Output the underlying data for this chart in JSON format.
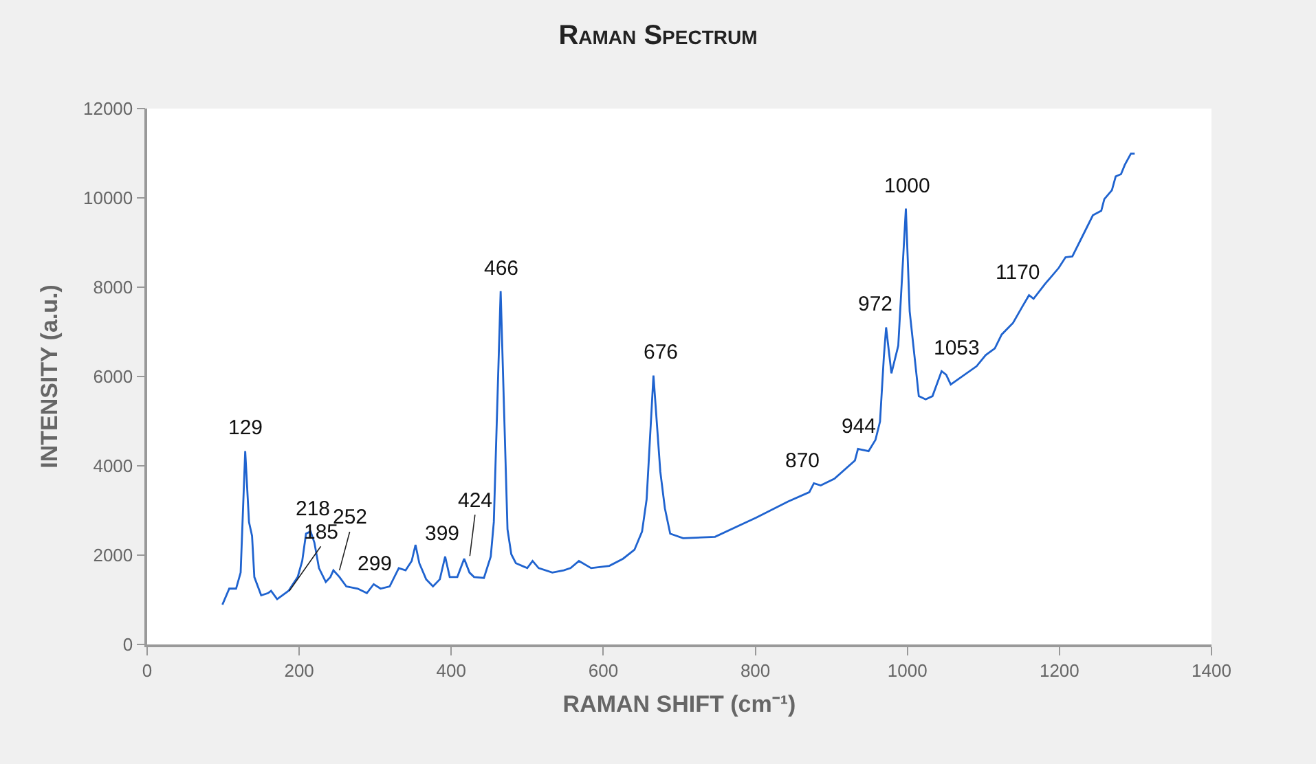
{
  "chart_data": {
    "type": "line",
    "title": "Raman Spectrum",
    "xlabel": "RAMAN SHIFT (cm⁻¹)",
    "ylabel": "INTENSITY (a.u.)",
    "x": [
      99,
      108,
      117,
      123,
      129,
      134,
      138,
      141,
      150,
      159,
      163,
      171,
      186,
      198,
      204,
      209,
      215,
      220,
      226,
      235,
      241,
      245,
      253,
      262,
      277,
      289,
      298,
      307,
      319,
      331,
      340,
      348,
      353,
      358,
      367,
      376,
      385,
      392,
      398,
      408,
      417,
      424,
      430,
      443,
      452,
      456,
      465,
      474,
      479,
      485,
      500,
      507,
      515,
      533,
      548,
      557,
      568,
      584,
      608,
      626,
      641,
      651,
      657,
      666,
      675,
      681,
      688,
      705,
      747,
      801,
      843,
      871,
      877,
      886,
      904,
      931,
      935,
      949,
      958,
      964,
      969,
      972,
      979,
      988,
      998,
      1003,
      1015,
      1024,
      1033,
      1045,
      1051,
      1057,
      1091,
      1103,
      1115,
      1124,
      1139,
      1151,
      1160,
      1166,
      1181,
      1199,
      1208,
      1217,
      1232,
      1244,
      1255,
      1259,
      1269,
      1274,
      1281,
      1286,
      1294,
      1299
    ],
    "series": [
      {
        "color": "#1f63cf",
        "values": [
          890,
          1250,
          1250,
          1610,
          4330,
          2740,
          2430,
          1510,
          1100,
          1150,
          1200,
          1015,
          1200,
          1510,
          1870,
          2480,
          2530,
          2280,
          1710,
          1400,
          1510,
          1660,
          1510,
          1300,
          1250,
          1150,
          1350,
          1250,
          1300,
          1710,
          1660,
          1870,
          2230,
          1820,
          1460,
          1300,
          1460,
          1970,
          1510,
          1510,
          1920,
          1610,
          1510,
          1490,
          1970,
          2740,
          7910,
          2580,
          2020,
          1820,
          1710,
          1870,
          1710,
          1610,
          1660,
          1710,
          1870,
          1710,
          1760,
          1920,
          2120,
          2530,
          3250,
          6020,
          3870,
          3050,
          2480,
          2380,
          2410,
          2840,
          3200,
          3410,
          3610,
          3560,
          3710,
          4120,
          4380,
          4330,
          4580,
          4990,
          6430,
          7100,
          6070,
          6690,
          9760,
          7460,
          5560,
          5490,
          5560,
          6120,
          6040,
          5820,
          6230,
          6480,
          6630,
          6940,
          7200,
          7560,
          7820,
          7740,
          8070,
          8430,
          8670,
          8690,
          9200,
          9610,
          9710,
          9970,
          10170,
          10480,
          10530,
          10740,
          10990,
          10990
        ]
      }
    ],
    "xlim": [
      0,
      1400
    ],
    "xticks": [
      0,
      200,
      400,
      600,
      800,
      1000,
      1200,
      1400
    ],
    "ylim": [
      0,
      12000
    ],
    "yticks": [
      0,
      2000,
      4000,
      6000,
      8000,
      10000,
      12000
    ],
    "marker": "none",
    "line_style": "solid",
    "annotations": [
      {
        "text": "129",
        "x": 129,
        "y": 4330
      },
      {
        "text": "185",
        "x": 185,
        "y": 1150
      },
      {
        "text": "218",
        "x": 218,
        "y": 2530
      },
      {
        "text": "252",
        "x": 252,
        "y": 1600
      },
      {
        "text": "299",
        "x": 299,
        "y": 1350
      },
      {
        "text": "399",
        "x": 399,
        "y": 1970
      },
      {
        "text": "424",
        "x": 424,
        "y": 1920
      },
      {
        "text": "466",
        "x": 466,
        "y": 7910
      },
      {
        "text": "676",
        "x": 676,
        "y": 6020
      },
      {
        "text": "870",
        "x": 870,
        "y": 3610
      },
      {
        "text": "944",
        "x": 944,
        "y": 4380
      },
      {
        "text": "972",
        "x": 972,
        "y": 7100
      },
      {
        "text": "1000",
        "x": 1000,
        "y": 9760
      },
      {
        "text": "1053",
        "x": 1053,
        "y": 6120
      },
      {
        "text": "1170",
        "x": 1170,
        "y": 7820
      }
    ]
  }
}
